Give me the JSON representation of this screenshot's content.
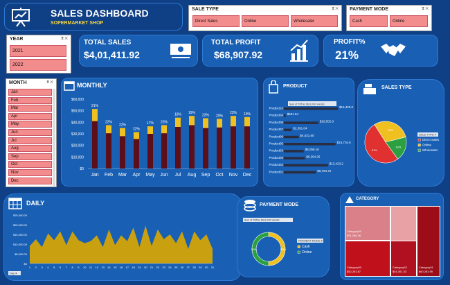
{
  "header": {
    "title": "SALES DASHBOARD",
    "subtitle": "SOPERMARKET SHOP"
  },
  "sale_type_slicer": {
    "title": "SALE TYPE",
    "items": [
      "Direct Sales",
      "Online",
      "Wholesaler"
    ]
  },
  "payment_slicer": {
    "title": "PAYMENT MODE",
    "items": [
      "Cash",
      "Online"
    ]
  },
  "year_slicer": {
    "title": "YEAR",
    "items": [
      "2021",
      "2022"
    ]
  },
  "month_slicer": {
    "title": "MONTH",
    "items": [
      "Jan",
      "Feb",
      "Mar",
      "Apr",
      "May",
      "Jun",
      "Jul",
      "Aug",
      "Sep",
      "Oct",
      "Nov",
      "Dec"
    ]
  },
  "kpis": {
    "total_sales_label": "TOTAL SALES",
    "total_sales_value": "$4,01,411.92",
    "total_profit_label": "TOTAL PROFIT",
    "total_profit_value": "$68,907.92",
    "profit_pct_label": "PROFIT%",
    "profit_pct_value": "21%"
  },
  "panels": {
    "monthly": "MONTHLY",
    "product": "PRODUCT",
    "sales_type": "SALES TYPE",
    "daily": "DAILY",
    "payment_mode": "PAYMENT MODE",
    "category": "CATEGORY"
  },
  "colors": {
    "bg": "#0f3f84",
    "panel": "#1960b4",
    "bar_dark": "#5c0f18",
    "bar_gold": "#f0c020",
    "pie_red": "#e03030",
    "pie_gold": "#f0c020",
    "pie_green": "#2aa040",
    "area": "#c8a010"
  },
  "chart_data": [
    {
      "type": "bar",
      "name": "monthly",
      "categories": [
        "Jan",
        "Feb",
        "Mar",
        "Apr",
        "May",
        "Jun",
        "Jul",
        "Aug",
        "Sep",
        "Oct",
        "Nov",
        "Dec"
      ],
      "series": [
        {
          "values": [
            41000,
            30500,
            28000,
            25500,
            30000,
            30500,
            36000,
            37500,
            35000,
            35500,
            36500,
            36500
          ]
        },
        {
          "values": [
            10500,
            7000,
            7000,
            6000,
            6500,
            7000,
            8000,
            8000,
            8500,
            7500,
            9000,
            8000
          ]
        }
      ],
      "data_labels": [
        "21%",
        "22%",
        "22%",
        "22%",
        "17%",
        "23%",
        "18%",
        "19%",
        "23%",
        "20%",
        "23%",
        "19%"
      ],
      "yticks": [
        "$0",
        "$10,000",
        "$20,000",
        "$30,000",
        "$40,000",
        "$50,000",
        "$60,000"
      ],
      "ylim": [
        0,
        60000
      ]
    },
    {
      "type": "bar",
      "name": "product",
      "orientation": "horizontal",
      "categories": [
        "Product10",
        "Product04",
        "Product08",
        "Product07",
        "Product06",
        "Product05",
        "Product03",
        "Product09",
        "Product02",
        "Product01"
      ],
      "values": [
        16428.0,
        581.64,
        10502.8,
        2391.04,
        4531.5,
        15716.6,
        6056.16,
        6394.26,
        13423.2,
        9764.72
      ],
      "value_labels": [
        "$16,428.0",
        "$581.64",
        "$10,502.8",
        "$2,391.04",
        "$4,531.50",
        "$15,716.6",
        "$6,056.16",
        "$6,394.26",
        "$13,423.2",
        "$9,764.72"
      ],
      "filter_label": "Sum of TOTAL SELLING VALUE"
    },
    {
      "type": "pie",
      "name": "sales_type",
      "labels": [
        "Direct Sales",
        "Online",
        "Wholesaler"
      ],
      "values": [
        51,
        30,
        19
      ],
      "value_labels": [
        "51%",
        "30%",
        "19%"
      ],
      "filter_label": "SALE TYPE"
    },
    {
      "type": "area",
      "name": "daily",
      "x": [
        "1",
        "2",
        "3",
        "4",
        "5",
        "6",
        "7",
        "8",
        "9",
        "10",
        "11",
        "12",
        "13",
        "14",
        "15",
        "16",
        "17",
        "18",
        "19",
        "20",
        "21",
        "22",
        "23",
        "24",
        "25",
        "26",
        "27",
        "28",
        "29",
        "30",
        "31"
      ],
      "values": [
        9000,
        12500,
        8500,
        15500,
        12000,
        16500,
        9500,
        16500,
        12000,
        10500,
        11500,
        14500,
        8500,
        17500,
        9500,
        14500,
        11500,
        18500,
        8500,
        19500,
        9000,
        17500,
        12500,
        15000,
        10500,
        16500,
        7500,
        16500,
        12000,
        15000,
        7500
      ],
      "yticks": [
        "$0",
        "$5,000.00",
        "$10,000.00",
        "$15,000.00",
        "$20,000.00",
        "$25,000.00"
      ],
      "ylim": [
        0,
        25000
      ],
      "filter_label": "Day"
    },
    {
      "type": "pie",
      "name": "payment_mode",
      "donut": true,
      "labels": [
        "Cash",
        "Online"
      ],
      "values": [
        50,
        50
      ],
      "value_labels": [
        "50%",
        "50%"
      ],
      "filter_label": "PAYMENT MODE",
      "field_label": "Sum of TOTAL SELLING VALUE"
    },
    {
      "type": "treemap",
      "name": "category",
      "items": [
        {
          "label": "Category04",
          "value": "$91,286.48"
        },
        {
          "label": "Category02",
          "value": "$65,477.26"
        },
        {
          "label": "Category01",
          "value": "$60,283.95"
        },
        {
          "label": "Category03",
          "value": "$51,001.33"
        },
        {
          "label": "Category05",
          "value": "$52,263.87"
        }
      ]
    }
  ]
}
